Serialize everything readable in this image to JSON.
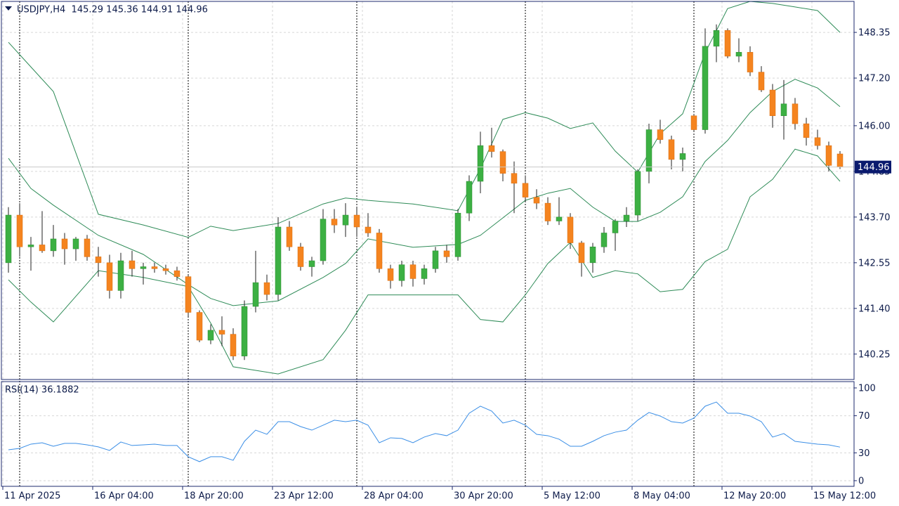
{
  "chart_data": [
    {
      "type": "candlestick",
      "title": "USDJPY,H4  145.29 145.36 144.91 144.96",
      "colors": {
        "up": "#3cb043",
        "down": "#f5841f",
        "wick": "#222222",
        "bands": "#2e8b57",
        "grid": "#d6d6d6",
        "separator": "#000000"
      },
      "last_price": 144.96,
      "grid": true,
      "xlim": [
        -0.625,
        75.25
      ],
      "xticks": [
        {
          "value": -0.5,
          "label": "11 Apr 2025"
        },
        {
          "value": 7.5,
          "label": "16 Apr 04:00"
        },
        {
          "value": 15.5,
          "label": "18 Apr 20:00"
        },
        {
          "value": 23.5,
          "label": "23 Apr 12:00"
        },
        {
          "value": 31.5,
          "label": "28 Apr 04:00"
        },
        {
          "value": 39.5,
          "label": "30 Apr 20:00"
        },
        {
          "value": 47.5,
          "label": "5 May 12:00"
        },
        {
          "value": 55.5,
          "label": "8 May 04:00"
        },
        {
          "value": 63.5,
          "label": "12 May 20:00"
        },
        {
          "value": 71.5,
          "label": "15 May 12:00"
        }
      ],
      "separators": [
        1,
        16,
        31,
        46,
        61
      ],
      "ylim": [
        139.61,
        149.13
      ],
      "yticks": [
        140.25,
        {
          "value": 141.4,
          "label": "141.40"
        },
        142.55,
        {
          "value": 143.7,
          "label": "143.70"
        },
        144.85,
        {
          "value": 146,
          "label": "146.00"
        },
        {
          "value": 147.2,
          "label": "147.20"
        },
        148.35
      ],
      "candles": [
        [
          142.55,
          143.95,
          142.3,
          143.75
        ],
        [
          143.75,
          144.05,
          142.7,
          142.95
        ],
        [
          142.95,
          143.2,
          142.35,
          143.0
        ],
        [
          143.0,
          143.85,
          142.8,
          142.85
        ],
        [
          142.85,
          143.5,
          142.7,
          143.15
        ],
        [
          143.15,
          143.3,
          142.5,
          142.9
        ],
        [
          142.9,
          143.2,
          142.6,
          143.15
        ],
        [
          143.15,
          143.25,
          142.6,
          142.7
        ],
        [
          142.7,
          142.95,
          142.2,
          142.55
        ],
        [
          142.55,
          142.75,
          141.65,
          141.85
        ],
        [
          141.85,
          142.8,
          141.65,
          142.6
        ],
        [
          142.6,
          142.85,
          142.2,
          142.4
        ],
        [
          142.4,
          142.55,
          142.0,
          142.45
        ],
        [
          142.45,
          142.55,
          142.3,
          142.4
        ],
        [
          142.4,
          142.5,
          142.25,
          142.35
        ],
        [
          142.35,
          142.45,
          142.1,
          142.2
        ],
        [
          142.2,
          142.25,
          141.2,
          141.3
        ],
        [
          141.3,
          141.35,
          140.55,
          140.6
        ],
        [
          140.6,
          141.0,
          140.5,
          140.85
        ],
        [
          140.85,
          141.2,
          140.45,
          140.75
        ],
        [
          140.75,
          140.9,
          140.1,
          140.2
        ],
        [
          140.2,
          141.6,
          140.1,
          141.45
        ],
        [
          141.45,
          142.85,
          141.3,
          142.05
        ],
        [
          142.05,
          142.25,
          141.6,
          141.75
        ],
        [
          141.75,
          143.7,
          141.6,
          143.45
        ],
        [
          143.45,
          143.6,
          142.85,
          142.95
        ],
        [
          142.95,
          143.05,
          142.35,
          142.45
        ],
        [
          142.45,
          142.7,
          142.2,
          142.6
        ],
        [
          142.6,
          143.9,
          142.5,
          143.65
        ],
        [
          143.65,
          143.9,
          143.3,
          143.5
        ],
        [
          143.5,
          144.05,
          143.2,
          143.75
        ],
        [
          143.75,
          143.95,
          143.2,
          143.45
        ],
        [
          143.45,
          143.8,
          143.2,
          143.3
        ],
        [
          143.3,
          143.4,
          142.3,
          142.4
        ],
        [
          142.4,
          142.5,
          141.9,
          142.1
        ],
        [
          142.1,
          142.6,
          141.95,
          142.5
        ],
        [
          142.5,
          142.6,
          141.95,
          142.15
        ],
        [
          142.15,
          142.5,
          142.0,
          142.4
        ],
        [
          142.4,
          142.95,
          142.3,
          142.85
        ],
        [
          142.85,
          143.0,
          142.55,
          142.7
        ],
        [
          142.7,
          143.9,
          142.6,
          143.8
        ],
        [
          143.8,
          144.75,
          143.6,
          144.6
        ],
        [
          144.6,
          145.85,
          144.3,
          145.5
        ],
        [
          145.5,
          145.95,
          145.2,
          145.35
        ],
        [
          145.35,
          145.4,
          144.6,
          144.8
        ],
        [
          144.8,
          145.1,
          143.8,
          144.55
        ],
        [
          144.55,
          144.75,
          144.1,
          144.2
        ],
        [
          144.2,
          144.4,
          143.9,
          144.05
        ],
        [
          144.05,
          144.2,
          143.5,
          143.6
        ],
        [
          143.6,
          144.2,
          143.5,
          143.7
        ],
        [
          143.7,
          143.8,
          142.9,
          143.05
        ],
        [
          143.05,
          143.1,
          142.2,
          142.55
        ],
        [
          142.55,
          143.05,
          142.3,
          142.95
        ],
        [
          142.95,
          143.45,
          142.8,
          143.3
        ],
        [
          143.3,
          143.65,
          142.85,
          143.6
        ],
        [
          143.6,
          143.95,
          143.45,
          143.75
        ],
        [
          143.75,
          144.9,
          143.6,
          144.85
        ],
        [
          144.85,
          146.05,
          144.55,
          145.9
        ],
        [
          145.9,
          146.15,
          145.55,
          145.65
        ],
        [
          145.65,
          145.75,
          144.9,
          145.15
        ],
        [
          145.15,
          145.45,
          144.85,
          145.3
        ],
        [
          146.25,
          146.3,
          145.85,
          145.9
        ],
        [
          145.9,
          148.45,
          145.8,
          148.0
        ],
        [
          148.0,
          148.55,
          147.6,
          148.4
        ],
        [
          148.4,
          148.45,
          147.7,
          147.75
        ],
        [
          147.75,
          148.2,
          147.6,
          147.85
        ],
        [
          147.85,
          148.0,
          147.25,
          147.35
        ],
        [
          147.35,
          147.5,
          146.85,
          146.9
        ],
        [
          146.9,
          147.05,
          145.95,
          146.25
        ],
        [
          146.25,
          147.15,
          145.65,
          146.55
        ],
        [
          146.55,
          146.7,
          145.9,
          146.05
        ],
        [
          146.05,
          146.2,
          145.5,
          145.7
        ],
        [
          145.7,
          145.9,
          145.4,
          145.5
        ],
        [
          145.5,
          145.6,
          144.85,
          145.0
        ],
        [
          145.29,
          145.36,
          144.91,
          144.96
        ]
      ],
      "bands": {
        "x": [
          0,
          2,
          4,
          8,
          12,
          16,
          18,
          20,
          24,
          28,
          30,
          32,
          36,
          40,
          42,
          44,
          46,
          48,
          50,
          52,
          54,
          56,
          58,
          60,
          62,
          64,
          66,
          68,
          70,
          72,
          74
        ],
        "upper": [
          148.1,
          147.48,
          146.86,
          143.77,
          143.5,
          143.19,
          143.47,
          143.36,
          143.54,
          144.03,
          144.18,
          144.12,
          144.03,
          143.86,
          144.92,
          146.16,
          146.33,
          146.19,
          145.93,
          146.07,
          145.36,
          144.83,
          145.8,
          146.3,
          147.84,
          148.95,
          149.13,
          149.08,
          148.99,
          148.9,
          148.35
        ],
        "middle": [
          145.18,
          144.42,
          144.0,
          143.24,
          142.76,
          142.0,
          141.65,
          141.47,
          141.59,
          142.18,
          142.53,
          143.15,
          142.94,
          143.01,
          143.24,
          143.68,
          144.12,
          144.3,
          144.42,
          143.95,
          143.59,
          143.59,
          143.82,
          144.21,
          145.1,
          145.63,
          146.33,
          146.86,
          147.17,
          146.95,
          146.48
        ],
        "lower": [
          142.12,
          141.56,
          141.06,
          142.35,
          142.18,
          141.95,
          141.03,
          139.93,
          139.75,
          140.11,
          140.85,
          141.74,
          141.74,
          141.74,
          141.12,
          141.06,
          141.74,
          142.53,
          143.06,
          142.18,
          142.35,
          142.27,
          141.82,
          141.88,
          142.58,
          142.89,
          144.21,
          144.65,
          145.41,
          145.24,
          144.6
        ]
      }
    },
    {
      "type": "line",
      "title": "RSI(14) 36.1882",
      "xlim": [
        -0.625,
        75.25
      ],
      "ylim": [
        -6.1,
        106.8
      ],
      "yticks": [
        0,
        30,
        70,
        100
      ],
      "grid": true,
      "series": [
        {
          "color": "#3a8ee6",
          "x": [
            0,
            1,
            2,
            3,
            4,
            5,
            6,
            7,
            8,
            9,
            10,
            11,
            12,
            13,
            14,
            15,
            16,
            17,
            18,
            19,
            20,
            21,
            22,
            23,
            24,
            25,
            26,
            27,
            28,
            29,
            30,
            31,
            32,
            33,
            34,
            35,
            36,
            37,
            38,
            39,
            40,
            41,
            42,
            43,
            44,
            45,
            46,
            47,
            48,
            49,
            50,
            51,
            52,
            53,
            54,
            55,
            56,
            57,
            58,
            59,
            60,
            61,
            62,
            63,
            64,
            65,
            66,
            67,
            68,
            69,
            70,
            71,
            72,
            73,
            74
          ],
          "values": [
            33.3,
            34.8,
            39.4,
            40.9,
            37.1,
            40.2,
            40.2,
            38.6,
            36.4,
            32.6,
            41.7,
            37.9,
            38.6,
            39.4,
            37.9,
            37.9,
            25.8,
            20.5,
            25.8,
            25.8,
            22.0,
            42.4,
            54.5,
            50.0,
            63.6,
            63.6,
            58.3,
            54.5,
            59.8,
            65.2,
            63.6,
            65.2,
            59.8,
            40.9,
            46.2,
            45.5,
            40.9,
            47.0,
            50.8,
            48.5,
            54.5,
            72.7,
            80.3,
            75.0,
            62.1,
            65.2,
            59.8,
            50.0,
            48.5,
            44.7,
            37.1,
            37.1,
            42.4,
            48.5,
            52.3,
            54.5,
            65.2,
            73.5,
            69.7,
            63.6,
            62.1,
            67.4,
            80.3,
            84.8,
            72.7,
            72.7,
            69.7,
            63.6,
            47.0,
            50.8,
            42.4,
            40.9,
            39.4,
            38.6,
            36.19
          ]
        }
      ]
    }
  ]
}
